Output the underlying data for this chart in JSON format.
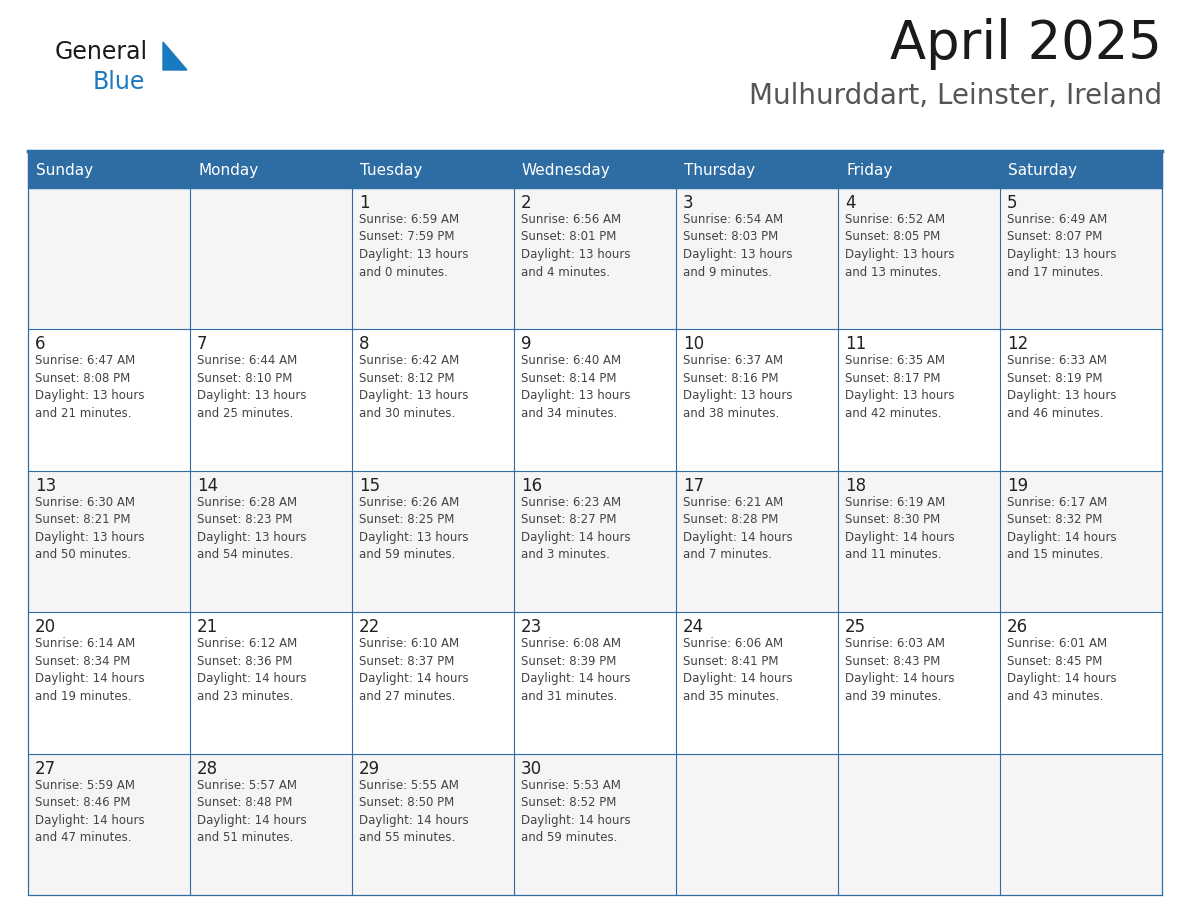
{
  "title": "April 2025",
  "subtitle": "Mulhurddart, Leinster, Ireland",
  "header_bg_color": "#2E6DA4",
  "header_text_color": "#FFFFFF",
  "border_color": "#2E6DA4",
  "text_color": "#333333",
  "day_number_color": "#222222",
  "info_text_color": "#444444",
  "cell_bg_even": "#F5F5F5",
  "cell_bg_odd": "#FFFFFF",
  "day_headers": [
    "Sunday",
    "Monday",
    "Tuesday",
    "Wednesday",
    "Thursday",
    "Friday",
    "Saturday"
  ],
  "weeks": [
    [
      {
        "day": "",
        "info": ""
      },
      {
        "day": "",
        "info": ""
      },
      {
        "day": "1",
        "info": "Sunrise: 6:59 AM\nSunset: 7:59 PM\nDaylight: 13 hours\nand 0 minutes."
      },
      {
        "day": "2",
        "info": "Sunrise: 6:56 AM\nSunset: 8:01 PM\nDaylight: 13 hours\nand 4 minutes."
      },
      {
        "day": "3",
        "info": "Sunrise: 6:54 AM\nSunset: 8:03 PM\nDaylight: 13 hours\nand 9 minutes."
      },
      {
        "day": "4",
        "info": "Sunrise: 6:52 AM\nSunset: 8:05 PM\nDaylight: 13 hours\nand 13 minutes."
      },
      {
        "day": "5",
        "info": "Sunrise: 6:49 AM\nSunset: 8:07 PM\nDaylight: 13 hours\nand 17 minutes."
      }
    ],
    [
      {
        "day": "6",
        "info": "Sunrise: 6:47 AM\nSunset: 8:08 PM\nDaylight: 13 hours\nand 21 minutes."
      },
      {
        "day": "7",
        "info": "Sunrise: 6:44 AM\nSunset: 8:10 PM\nDaylight: 13 hours\nand 25 minutes."
      },
      {
        "day": "8",
        "info": "Sunrise: 6:42 AM\nSunset: 8:12 PM\nDaylight: 13 hours\nand 30 minutes."
      },
      {
        "day": "9",
        "info": "Sunrise: 6:40 AM\nSunset: 8:14 PM\nDaylight: 13 hours\nand 34 minutes."
      },
      {
        "day": "10",
        "info": "Sunrise: 6:37 AM\nSunset: 8:16 PM\nDaylight: 13 hours\nand 38 minutes."
      },
      {
        "day": "11",
        "info": "Sunrise: 6:35 AM\nSunset: 8:17 PM\nDaylight: 13 hours\nand 42 minutes."
      },
      {
        "day": "12",
        "info": "Sunrise: 6:33 AM\nSunset: 8:19 PM\nDaylight: 13 hours\nand 46 minutes."
      }
    ],
    [
      {
        "day": "13",
        "info": "Sunrise: 6:30 AM\nSunset: 8:21 PM\nDaylight: 13 hours\nand 50 minutes."
      },
      {
        "day": "14",
        "info": "Sunrise: 6:28 AM\nSunset: 8:23 PM\nDaylight: 13 hours\nand 54 minutes."
      },
      {
        "day": "15",
        "info": "Sunrise: 6:26 AM\nSunset: 8:25 PM\nDaylight: 13 hours\nand 59 minutes."
      },
      {
        "day": "16",
        "info": "Sunrise: 6:23 AM\nSunset: 8:27 PM\nDaylight: 14 hours\nand 3 minutes."
      },
      {
        "day": "17",
        "info": "Sunrise: 6:21 AM\nSunset: 8:28 PM\nDaylight: 14 hours\nand 7 minutes."
      },
      {
        "day": "18",
        "info": "Sunrise: 6:19 AM\nSunset: 8:30 PM\nDaylight: 14 hours\nand 11 minutes."
      },
      {
        "day": "19",
        "info": "Sunrise: 6:17 AM\nSunset: 8:32 PM\nDaylight: 14 hours\nand 15 minutes."
      }
    ],
    [
      {
        "day": "20",
        "info": "Sunrise: 6:14 AM\nSunset: 8:34 PM\nDaylight: 14 hours\nand 19 minutes."
      },
      {
        "day": "21",
        "info": "Sunrise: 6:12 AM\nSunset: 8:36 PM\nDaylight: 14 hours\nand 23 minutes."
      },
      {
        "day": "22",
        "info": "Sunrise: 6:10 AM\nSunset: 8:37 PM\nDaylight: 14 hours\nand 27 minutes."
      },
      {
        "day": "23",
        "info": "Sunrise: 6:08 AM\nSunset: 8:39 PM\nDaylight: 14 hours\nand 31 minutes."
      },
      {
        "day": "24",
        "info": "Sunrise: 6:06 AM\nSunset: 8:41 PM\nDaylight: 14 hours\nand 35 minutes."
      },
      {
        "day": "25",
        "info": "Sunrise: 6:03 AM\nSunset: 8:43 PM\nDaylight: 14 hours\nand 39 minutes."
      },
      {
        "day": "26",
        "info": "Sunrise: 6:01 AM\nSunset: 8:45 PM\nDaylight: 14 hours\nand 43 minutes."
      }
    ],
    [
      {
        "day": "27",
        "info": "Sunrise: 5:59 AM\nSunset: 8:46 PM\nDaylight: 14 hours\nand 47 minutes."
      },
      {
        "day": "28",
        "info": "Sunrise: 5:57 AM\nSunset: 8:48 PM\nDaylight: 14 hours\nand 51 minutes."
      },
      {
        "day": "29",
        "info": "Sunrise: 5:55 AM\nSunset: 8:50 PM\nDaylight: 14 hours\nand 55 minutes."
      },
      {
        "day": "30",
        "info": "Sunrise: 5:53 AM\nSunset: 8:52 PM\nDaylight: 14 hours\nand 59 minutes."
      },
      {
        "day": "",
        "info": ""
      },
      {
        "day": "",
        "info": ""
      },
      {
        "day": "",
        "info": ""
      }
    ]
  ],
  "logo_text1": "General",
  "logo_text2": "Blue",
  "logo_text1_color": "#1a1a1a",
  "logo_text2_color": "#1a7abf",
  "logo_triangle_color": "#1a7abf",
  "title_fontsize": 38,
  "subtitle_fontsize": 20,
  "header_fontsize": 11,
  "day_num_fontsize": 12,
  "info_fontsize": 8.5,
  "logo_fontsize": 17
}
